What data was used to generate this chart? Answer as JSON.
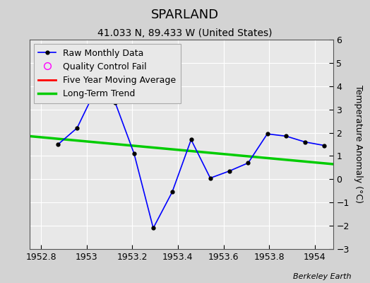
{
  "title": "SPARLAND",
  "subtitle": "41.033 N, 89.433 W (United States)",
  "footer": "Berkeley Earth",
  "ylabel_right": "Temperature Anomaly (°C)",
  "xlim": [
    1952.75,
    1954.08
  ],
  "ylim": [
    -3,
    6
  ],
  "yticks": [
    -3,
    -2,
    -1,
    0,
    1,
    2,
    3,
    4,
    5,
    6
  ],
  "xticks": [
    1952.8,
    1953.0,
    1953.2,
    1953.4,
    1953.6,
    1953.8,
    1954.0
  ],
  "xticklabels": [
    "1952.8",
    "1953",
    "1953.2",
    "1953.4",
    "1953.6",
    "1953.8",
    "1954"
  ],
  "raw_x": [
    1952.875,
    1952.958,
    1953.042,
    1953.125,
    1953.208,
    1953.292,
    1953.375,
    1953.458,
    1953.542,
    1953.625,
    1953.708,
    1953.792,
    1953.875,
    1953.958,
    1954.042
  ],
  "raw_y": [
    1.5,
    2.2,
    3.9,
    3.3,
    1.1,
    -2.1,
    -0.55,
    1.7,
    0.05,
    0.35,
    0.7,
    1.95,
    1.85,
    1.6,
    1.45
  ],
  "trend_x": [
    1952.75,
    1954.08
  ],
  "trend_y": [
    1.85,
    0.65
  ],
  "raw_color": "#0000ff",
  "trend_color": "#00cc00",
  "moving_avg_color": "#ff0000",
  "qc_color": "#ff00ff",
  "background_color": "#d3d3d3",
  "plot_bg_color": "#e8e8e8",
  "grid_color": "#ffffff",
  "title_fontsize": 13,
  "subtitle_fontsize": 10,
  "tick_fontsize": 9,
  "legend_fontsize": 9,
  "ylabel_fontsize": 9
}
